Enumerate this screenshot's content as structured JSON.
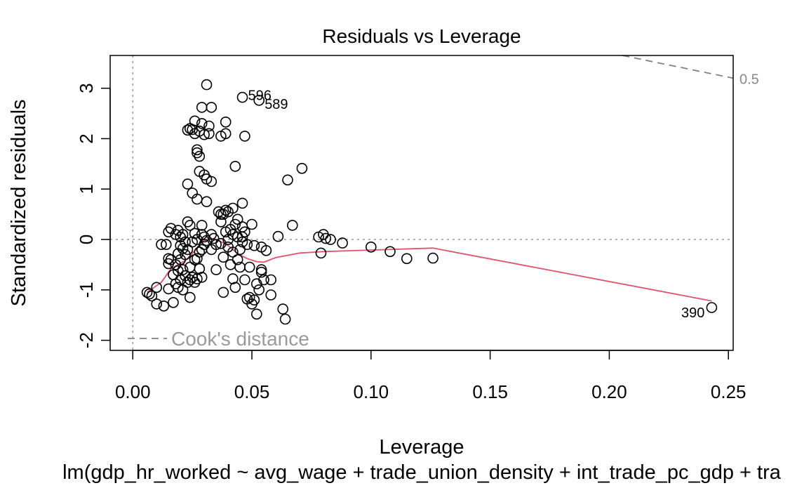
{
  "chart_data": {
    "type": "scatter",
    "title": "Residuals vs Leverage",
    "xlabel": "Leverage",
    "ylabel": "Standardized residuals",
    "subtitle": "lm(gdp_hr_worked ~ avg_wage + trade_union_density + int_trade_pc_gdp + tra",
    "xlim": [
      -0.0095,
      0.252
    ],
    "ylim": [
      -2.2,
      3.65
    ],
    "x_ticks": [
      "0.00",
      "0.05",
      "0.10",
      "0.15",
      "0.20",
      "0.25"
    ],
    "x_tick_values": [
      0,
      0.05,
      0.1,
      0.15,
      0.2,
      0.25
    ],
    "y_ticks": [
      "-2",
      "-1",
      "0",
      "1",
      "2",
      "3"
    ],
    "y_tick_values": [
      -2,
      -1,
      0,
      1,
      2,
      3
    ],
    "reference_lines": {
      "horizontal_y": 0,
      "vertical_x": 0
    },
    "legend": {
      "label": "Cook's distance",
      "position": "bottom-left"
    },
    "cooks_contour_label": "0.5",
    "cooks_contour": [
      [
        0.2055,
        3.65
      ],
      [
        0.252,
        3.2
      ]
    ],
    "points": [
      [
        0.006,
        -1.05
      ],
      [
        0.007,
        -1.08
      ],
      [
        0.008,
        -1.12
      ],
      [
        0.01,
        -0.95
      ],
      [
        0.01,
        -1.28
      ],
      [
        0.012,
        -0.1
      ],
      [
        0.013,
        -1.32
      ],
      [
        0.014,
        -0.1
      ],
      [
        0.015,
        0.15
      ],
      [
        0.015,
        -0.38
      ],
      [
        0.015,
        -0.48
      ],
      [
        0.015,
        -0.98
      ],
      [
        0.016,
        0.22
      ],
      [
        0.016,
        -0.4
      ],
      [
        0.017,
        -0.7
      ],
      [
        0.017,
        -1.25
      ],
      [
        0.018,
        0.1
      ],
      [
        0.018,
        -0.5
      ],
      [
        0.018,
        -0.88
      ],
      [
        0.019,
        0.18
      ],
      [
        0.019,
        -0.28
      ],
      [
        0.019,
        -0.62
      ],
      [
        0.019,
        -0.95
      ],
      [
        0.02,
        0.05
      ],
      [
        0.02,
        -0.12
      ],
      [
        0.02,
        -0.4
      ],
      [
        0.02,
        -0.8
      ],
      [
        0.021,
        0.1
      ],
      [
        0.021,
        -0.18
      ],
      [
        0.021,
        -0.6
      ],
      [
        0.021,
        -1.0
      ],
      [
        0.022,
        -0.05
      ],
      [
        0.022,
        -0.3
      ],
      [
        0.022,
        -0.72
      ],
      [
        0.023,
        0.35
      ],
      [
        0.023,
        -0.2
      ],
      [
        0.023,
        -0.85
      ],
      [
        0.023,
        1.1
      ],
      [
        0.023,
        2.17
      ],
      [
        0.024,
        0.28
      ],
      [
        0.024,
        -0.55
      ],
      [
        0.024,
        -1.15
      ],
      [
        0.024,
        -0.8
      ],
      [
        0.024,
        2.2
      ],
      [
        0.025,
        0.92
      ],
      [
        0.025,
        -0.05
      ],
      [
        0.025,
        -0.75
      ],
      [
        0.025,
        2.18
      ],
      [
        0.026,
        0.12
      ],
      [
        0.026,
        -0.4
      ],
      [
        0.026,
        -0.85
      ],
      [
        0.026,
        2.1
      ],
      [
        0.026,
        2.35
      ],
      [
        0.027,
        1.78
      ],
      [
        0.027,
        1.72
      ],
      [
        0.027,
        0.8
      ],
      [
        0.027,
        0.0
      ],
      [
        0.027,
        -0.38
      ],
      [
        0.027,
        -0.78
      ],
      [
        0.028,
        1.65
      ],
      [
        0.028,
        -0.25
      ],
      [
        0.028,
        -0.58
      ],
      [
        0.028,
        2.15
      ],
      [
        0.028,
        1.35
      ],
      [
        0.029,
        2.62
      ],
      [
        0.029,
        0.28
      ],
      [
        0.029,
        0.1
      ],
      [
        0.029,
        -0.2
      ],
      [
        0.029,
        -0.75
      ],
      [
        0.029,
        2.3
      ],
      [
        0.03,
        2.08
      ],
      [
        0.03,
        1.28
      ],
      [
        0.03,
        0.05
      ],
      [
        0.03,
        -0.1
      ],
      [
        0.031,
        3.07
      ],
      [
        0.031,
        1.2
      ],
      [
        0.031,
        0.75
      ],
      [
        0.031,
        -0.02
      ],
      [
        0.032,
        2.25
      ],
      [
        0.032,
        2.1
      ],
      [
        0.033,
        2.62
      ],
      [
        0.033,
        1.15
      ],
      [
        0.033,
        0.1
      ],
      [
        0.033,
        -0.2
      ],
      [
        0.034,
        0.02
      ],
      [
        0.035,
        -0.1
      ],
      [
        0.035,
        -0.6
      ],
      [
        0.036,
        0.55
      ],
      [
        0.037,
        2.05
      ],
      [
        0.037,
        0.5
      ],
      [
        0.037,
        0.35
      ],
      [
        0.037,
        -0.08
      ],
      [
        0.038,
        0.5
      ],
      [
        0.038,
        -0.35
      ],
      [
        0.038,
        -1.05
      ],
      [
        0.039,
        2.33
      ],
      [
        0.039,
        2.1
      ],
      [
        0.039,
        0.58
      ],
      [
        0.039,
        0.15
      ],
      [
        0.04,
        0.55
      ],
      [
        0.04,
        -0.15
      ],
      [
        0.04,
        0.0
      ],
      [
        0.041,
        0.2
      ],
      [
        0.041,
        -0.5
      ],
      [
        0.042,
        0.1
      ],
      [
        0.042,
        0.62
      ],
      [
        0.042,
        -0.25
      ],
      [
        0.042,
        -0.78
      ],
      [
        0.043,
        1.45
      ],
      [
        0.043,
        0.3
      ],
      [
        0.043,
        -0.95
      ],
      [
        0.044,
        0.4
      ],
      [
        0.044,
        0.05
      ],
      [
        0.044,
        -0.4
      ],
      [
        0.045,
        -0.2
      ],
      [
        0.045,
        -0.55
      ],
      [
        0.046,
        2.82
      ],
      [
        0.046,
        0.25
      ],
      [
        0.046,
        -0.05
      ],
      [
        0.046,
        0.72
      ],
      [
        0.046,
        0.05
      ],
      [
        0.047,
        2.05
      ],
      [
        0.047,
        0.15
      ],
      [
        0.047,
        -0.8
      ],
      [
        0.048,
        -0.1
      ],
      [
        0.048,
        -1.18
      ],
      [
        0.049,
        -1.15
      ],
      [
        0.049,
        -0.55
      ],
      [
        0.05,
        0.3
      ],
      [
        0.05,
        -1.28
      ],
      [
        0.051,
        -0.12
      ],
      [
        0.051,
        -1.2
      ],
      [
        0.052,
        -0.88
      ],
      [
        0.052,
        -1.48
      ],
      [
        0.053,
        2.76
      ],
      [
        0.053,
        -1.0
      ],
      [
        0.054,
        -0.6
      ],
      [
        0.054,
        -0.65
      ],
      [
        0.054,
        -0.15
      ],
      [
        0.055,
        -0.8
      ],
      [
        0.056,
        -0.22
      ],
      [
        0.058,
        -0.8
      ],
      [
        0.058,
        -1.1
      ],
      [
        0.061,
        0.06
      ],
      [
        0.063,
        -1.38
      ],
      [
        0.064,
        -1.58
      ],
      [
        0.065,
        1.18
      ],
      [
        0.067,
        0.28
      ],
      [
        0.071,
        1.41
      ],
      [
        0.078,
        0.05
      ],
      [
        0.079,
        -0.27
      ],
      [
        0.08,
        0.1
      ],
      [
        0.081,
        0.02
      ],
      [
        0.083,
        0.0
      ],
      [
        0.088,
        -0.07
      ],
      [
        0.1,
        -0.15
      ],
      [
        0.108,
        -0.24
      ],
      [
        0.115,
        -0.38
      ],
      [
        0.126,
        -0.37
      ],
      [
        0.243,
        -1.35
      ]
    ],
    "point_labels": [
      {
        "text": "596",
        "x": 0.046,
        "y": 2.82
      },
      {
        "text": "589",
        "x": 0.053,
        "y": 2.76
      },
      {
        "text": "390",
        "x": 0.243,
        "y": -1.35
      }
    ],
    "smoother": [
      [
        0.006,
        -1.05
      ],
      [
        0.012,
        -0.85
      ],
      [
        0.016,
        -0.58
      ],
      [
        0.022,
        -0.42
      ],
      [
        0.027,
        -0.18
      ],
      [
        0.03,
        -0.02
      ],
      [
        0.033,
        0.02
      ],
      [
        0.036,
        -0.02
      ],
      [
        0.04,
        -0.12
      ],
      [
        0.044,
        -0.28
      ],
      [
        0.048,
        -0.38
      ],
      [
        0.052,
        -0.44
      ],
      [
        0.055,
        -0.45
      ],
      [
        0.06,
        -0.36
      ],
      [
        0.07,
        -0.27
      ],
      [
        0.08,
        -0.24
      ],
      [
        0.1,
        -0.21
      ],
      [
        0.126,
        -0.17
      ],
      [
        0.243,
        -1.22
      ]
    ],
    "colors": {
      "points": "#000000",
      "smoother": "#DF536B",
      "reference": "#999999",
      "cooks": "#808080"
    }
  }
}
